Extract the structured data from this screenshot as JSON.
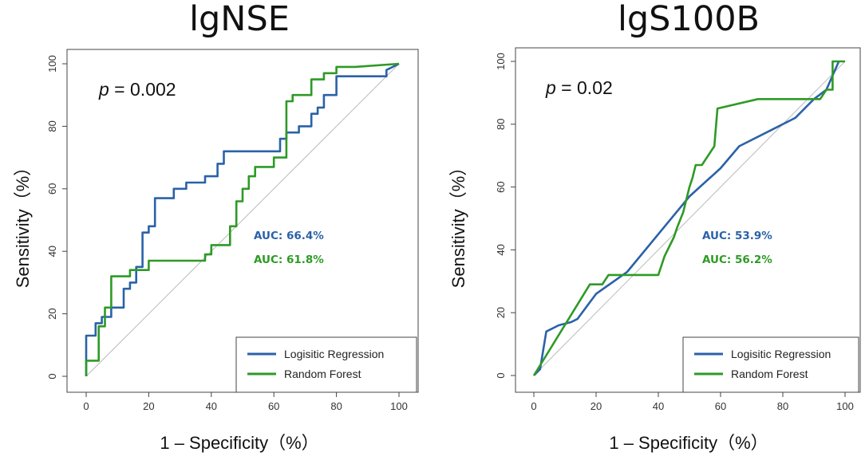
{
  "colors": {
    "logistic": "#2a62a8",
    "forest": "#2e9a26",
    "diagonal": "#bbbbbb"
  },
  "chart_data": [
    {
      "type": "line",
      "title": "lgNSE",
      "xlabel": "1 – Specificity（%）",
      "ylabel": "Sensitivity（%）",
      "xlim": [
        0,
        100
      ],
      "ylim": [
        0,
        100
      ],
      "xticks": [
        "0",
        "20",
        "40",
        "60",
        "80",
        "100"
      ],
      "yticks": [
        "0",
        "20",
        "40",
        "60",
        "80",
        "100"
      ],
      "p_prefix": "p",
      "p_value": " = 0.002",
      "legend": [
        "Logisitic Regression",
        "Random Forest"
      ],
      "legend_position": "bottom-right",
      "series": [
        {
          "name": "Logisitic Regression",
          "color_key": "logistic",
          "auc_label": "AUC: 66.4%",
          "x": [
            0,
            0,
            3,
            3,
            5,
            5,
            8,
            8,
            12,
            12,
            14,
            14,
            16,
            16,
            18,
            18,
            20,
            20,
            22,
            22,
            28,
            28,
            32,
            32,
            38,
            38,
            42,
            42,
            44,
            44,
            52,
            52,
            62,
            62,
            64,
            64,
            68,
            68,
            72,
            72,
            74,
            74,
            76,
            76,
            80,
            80,
            96,
            96,
            100
          ],
          "y": [
            0,
            13,
            13,
            17,
            17,
            19,
            19,
            22,
            22,
            28,
            28,
            30,
            30,
            35,
            35,
            46,
            46,
            48,
            48,
            57,
            57,
            60,
            60,
            62,
            62,
            64,
            64,
            68,
            68,
            72,
            72,
            72,
            72,
            76,
            76,
            78,
            78,
            80,
            80,
            84,
            84,
            86,
            86,
            90,
            90,
            96,
            96,
            98,
            100
          ]
        },
        {
          "name": "Random Forest",
          "color_key": "forest",
          "auc_label": "AUC: 61.8%",
          "x": [
            0,
            0,
            4,
            4,
            6,
            6,
            8,
            8,
            14,
            14,
            20,
            20,
            38,
            38,
            40,
            40,
            46,
            46,
            48,
            48,
            50,
            50,
            52,
            52,
            54,
            54,
            60,
            60,
            64,
            64,
            66,
            66,
            72,
            72,
            76,
            76,
            80,
            80,
            86,
            86,
            100
          ],
          "y": [
            0,
            5,
            5,
            16,
            16,
            22,
            22,
            32,
            32,
            34,
            34,
            37,
            37,
            39,
            39,
            42,
            42,
            48,
            48,
            56,
            56,
            60,
            60,
            64,
            64,
            67,
            67,
            70,
            70,
            88,
            88,
            90,
            90,
            95,
            95,
            97,
            97,
            99,
            99,
            99,
            100
          ]
        }
      ]
    },
    {
      "type": "line",
      "title": "lgS100B",
      "xlabel": "1 – Specificity（%）",
      "ylabel": "Sensitivity（%）",
      "xlim": [
        0,
        100
      ],
      "ylim": [
        0,
        100
      ],
      "xticks": [
        "0",
        "20",
        "40",
        "60",
        "80",
        "100"
      ],
      "yticks": [
        "0",
        "20",
        "40",
        "60",
        "80",
        "100"
      ],
      "p_prefix": "p",
      "p_value": " = 0.02",
      "legend": [
        "Logisitic Regression",
        "Random Forest"
      ],
      "legend_position": "bottom-right",
      "series": [
        {
          "name": "Logisitic Regression",
          "color_key": "logistic",
          "auc_label": "AUC: 53.9%",
          "x": [
            0,
            2,
            4,
            8,
            12,
            14,
            20,
            30,
            40,
            50,
            60,
            66,
            76,
            84,
            90,
            94,
            98
          ],
          "y": [
            0,
            2,
            14,
            16,
            17,
            18,
            26,
            33,
            45,
            57,
            66,
            73,
            78,
            82,
            88,
            91,
            100
          ]
        },
        {
          "name": "Random Forest",
          "color_key": "forest",
          "auc_label": "AUC: 56.2%",
          "x": [
            0,
            18,
            22,
            24,
            40,
            41,
            42,
            43,
            44,
            45,
            46,
            48,
            49,
            50,
            51,
            52,
            54,
            56,
            58,
            59,
            72,
            84,
            92,
            94,
            96,
            96,
            98,
            100
          ],
          "y": [
            0,
            29,
            29,
            32,
            32,
            35,
            38,
            40,
            42,
            44,
            47,
            52,
            56,
            60,
            63,
            67,
            67,
            70,
            73,
            85,
            88,
            88,
            88,
            91,
            91,
            100,
            100,
            100
          ]
        }
      ]
    }
  ]
}
